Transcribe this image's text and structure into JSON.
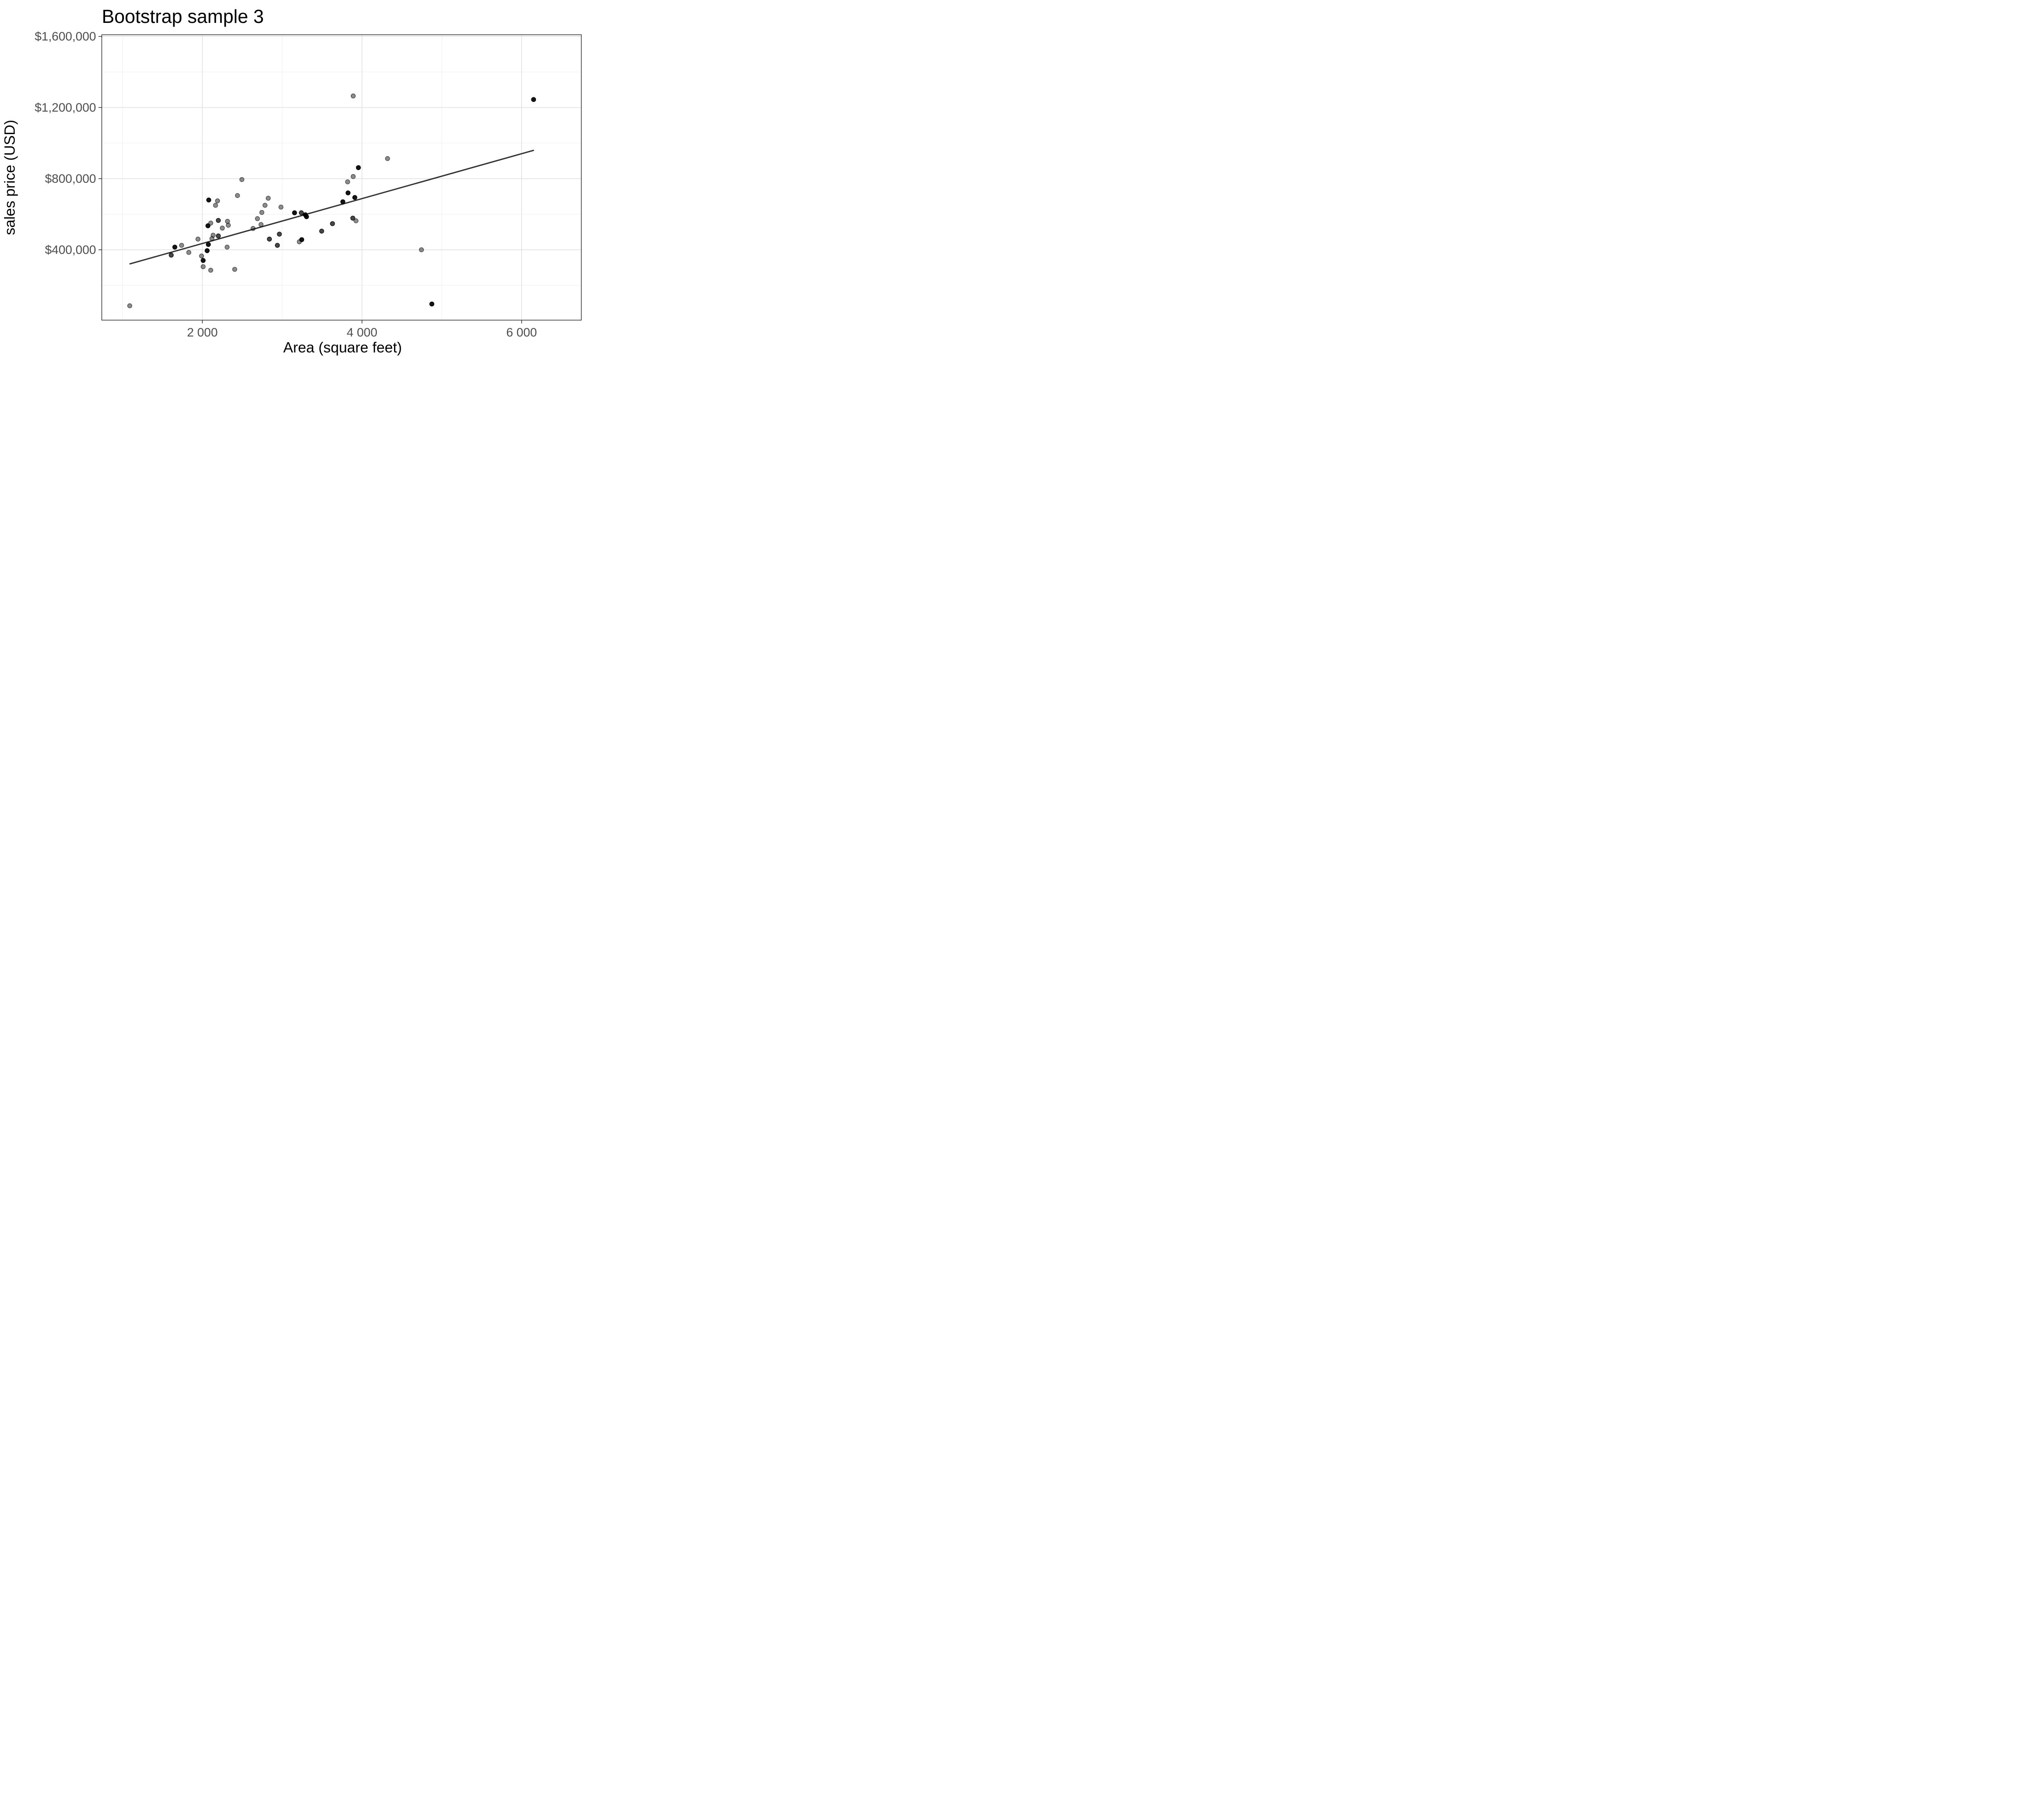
{
  "title": "Bootstrap sample 3",
  "chart_data": {
    "type": "scatter",
    "title": "Bootstrap sample 3",
    "xlabel": "Area (square feet)",
    "ylabel": "sales price (USD)",
    "xlim": [
      740,
      6748
    ],
    "ylim": [
      4400,
      1609300
    ],
    "grid": true,
    "legend": "none",
    "x_axis": {
      "major": [
        2000,
        4000,
        6000
      ],
      "labels": [
        "2 000",
        "4 000",
        "6 000"
      ],
      "minor": [
        1000,
        3000,
        5000
      ]
    },
    "y_axis": {
      "major": [
        400000,
        800000,
        1200000,
        1600000
      ],
      "labels": [
        "$400,000",
        "$800,000",
        "$1,200,000",
        "$1,600,000"
      ],
      "minor": [
        200000,
        600000,
        1000000,
        1400000
      ]
    },
    "point_style": {
      "color": "#000000",
      "alpha_levels": {
        "l": 0.45,
        "m": 0.72,
        "d": 0.92
      }
    },
    "points": [
      [
        1090,
        85000,
        "l"
      ],
      [
        1610,
        370000,
        "m"
      ],
      [
        1655,
        415000,
        "d"
      ],
      [
        1740,
        425000,
        "l"
      ],
      [
        1830,
        385000,
        "l"
      ],
      [
        1945,
        460000,
        "l"
      ],
      [
        1990,
        365000,
        "l"
      ],
      [
        2010,
        340000,
        "d"
      ],
      [
        2010,
        305000,
        "l"
      ],
      [
        2060,
        395000,
        "d"
      ],
      [
        2070,
        535000,
        "d"
      ],
      [
        2075,
        430000,
        "d"
      ],
      [
        2080,
        680000,
        "d"
      ],
      [
        2105,
        285000,
        "l"
      ],
      [
        2105,
        550000,
        "l"
      ],
      [
        2120,
        463000,
        "l"
      ],
      [
        2135,
        482000,
        "l"
      ],
      [
        2165,
        650000,
        "l"
      ],
      [
        2190,
        675000,
        "l"
      ],
      [
        2200,
        478000,
        "m"
      ],
      [
        2200,
        565000,
        "m"
      ],
      [
        2250,
        522000,
        "l"
      ],
      [
        2310,
        415000,
        "l"
      ],
      [
        2315,
        560000,
        "l"
      ],
      [
        2325,
        538000,
        "l"
      ],
      [
        2405,
        290000,
        "l"
      ],
      [
        2440,
        705000,
        "l"
      ],
      [
        2495,
        795000,
        "l"
      ],
      [
        2635,
        520000,
        "l"
      ],
      [
        2690,
        575000,
        "l"
      ],
      [
        2735,
        542000,
        "l"
      ],
      [
        2745,
        610000,
        "l"
      ],
      [
        2785,
        650000,
        "l"
      ],
      [
        2825,
        690000,
        "l"
      ],
      [
        2840,
        460000,
        "m"
      ],
      [
        2940,
        425000,
        "m"
      ],
      [
        2965,
        488000,
        "m"
      ],
      [
        2985,
        640000,
        "l"
      ],
      [
        3155,
        608000,
        "d"
      ],
      [
        3215,
        445000,
        "l"
      ],
      [
        3240,
        608000,
        "m"
      ],
      [
        3245,
        457000,
        "d"
      ],
      [
        3290,
        597000,
        "d"
      ],
      [
        3305,
        586000,
        "d"
      ],
      [
        3495,
        505000,
        "m"
      ],
      [
        3630,
        547000,
        "m"
      ],
      [
        3760,
        670000,
        "d"
      ],
      [
        3820,
        782000,
        "l"
      ],
      [
        3825,
        720000,
        "d"
      ],
      [
        3885,
        578000,
        "m"
      ],
      [
        3890,
        812000,
        "l"
      ],
      [
        3890,
        1265000,
        "l"
      ],
      [
        3910,
        694000,
        "d"
      ],
      [
        3925,
        563000,
        "l"
      ],
      [
        3955,
        862000,
        "d"
      ],
      [
        4320,
        913000,
        "l"
      ],
      [
        4745,
        400000,
        "l"
      ],
      [
        4875,
        95000,
        "d"
      ],
      [
        6150,
        1245000,
        "d"
      ]
    ],
    "regression_line": {
      "x1": 1094,
      "y1": 321000,
      "x2": 6148,
      "y2": 959000,
      "color": "#333333"
    }
  },
  "theme": {
    "background": "#ffffff",
    "grid_major": "#e3e3e3",
    "grid_minor": "#efefef",
    "panel_border": "#333333",
    "tick_color": "#333333",
    "tick_label_color": "#4d4d4d",
    "title_color": "#000000",
    "axis_title_color": "#000000"
  }
}
